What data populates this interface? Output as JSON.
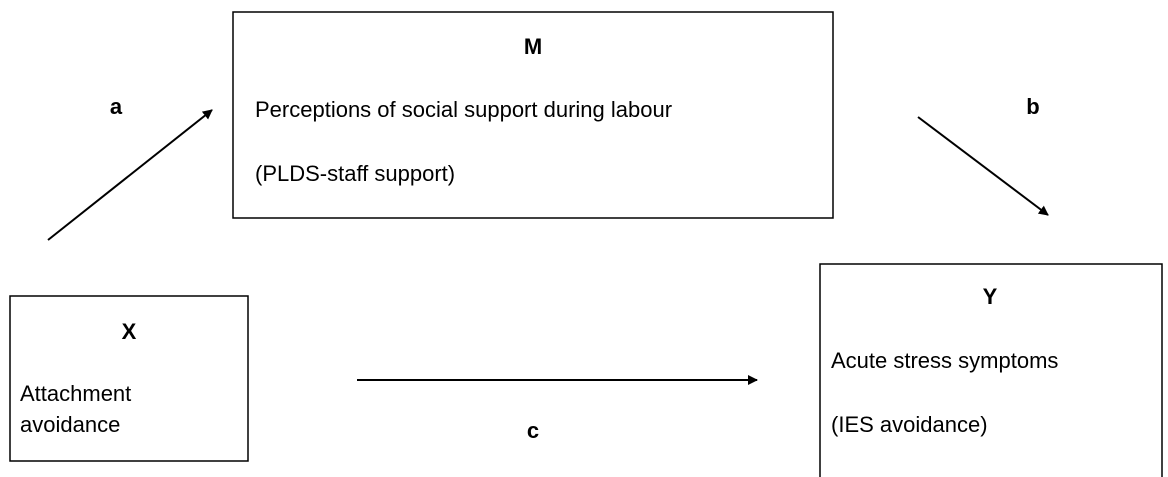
{
  "nodes": [
    {
      "id": "M",
      "label": "M",
      "lines": [
        "Perceptions of social support during labour",
        "(PLDS-staff support)"
      ]
    },
    {
      "id": "X",
      "label": "X",
      "lines": [
        "Attachment",
        "avoidance"
      ]
    },
    {
      "id": "Y",
      "label": "Y",
      "lines": [
        "Acute stress symptoms",
        "(IES avoidance)"
      ]
    }
  ],
  "edges": [
    {
      "label": "a"
    },
    {
      "label": "b"
    },
    {
      "label": "c"
    }
  ]
}
